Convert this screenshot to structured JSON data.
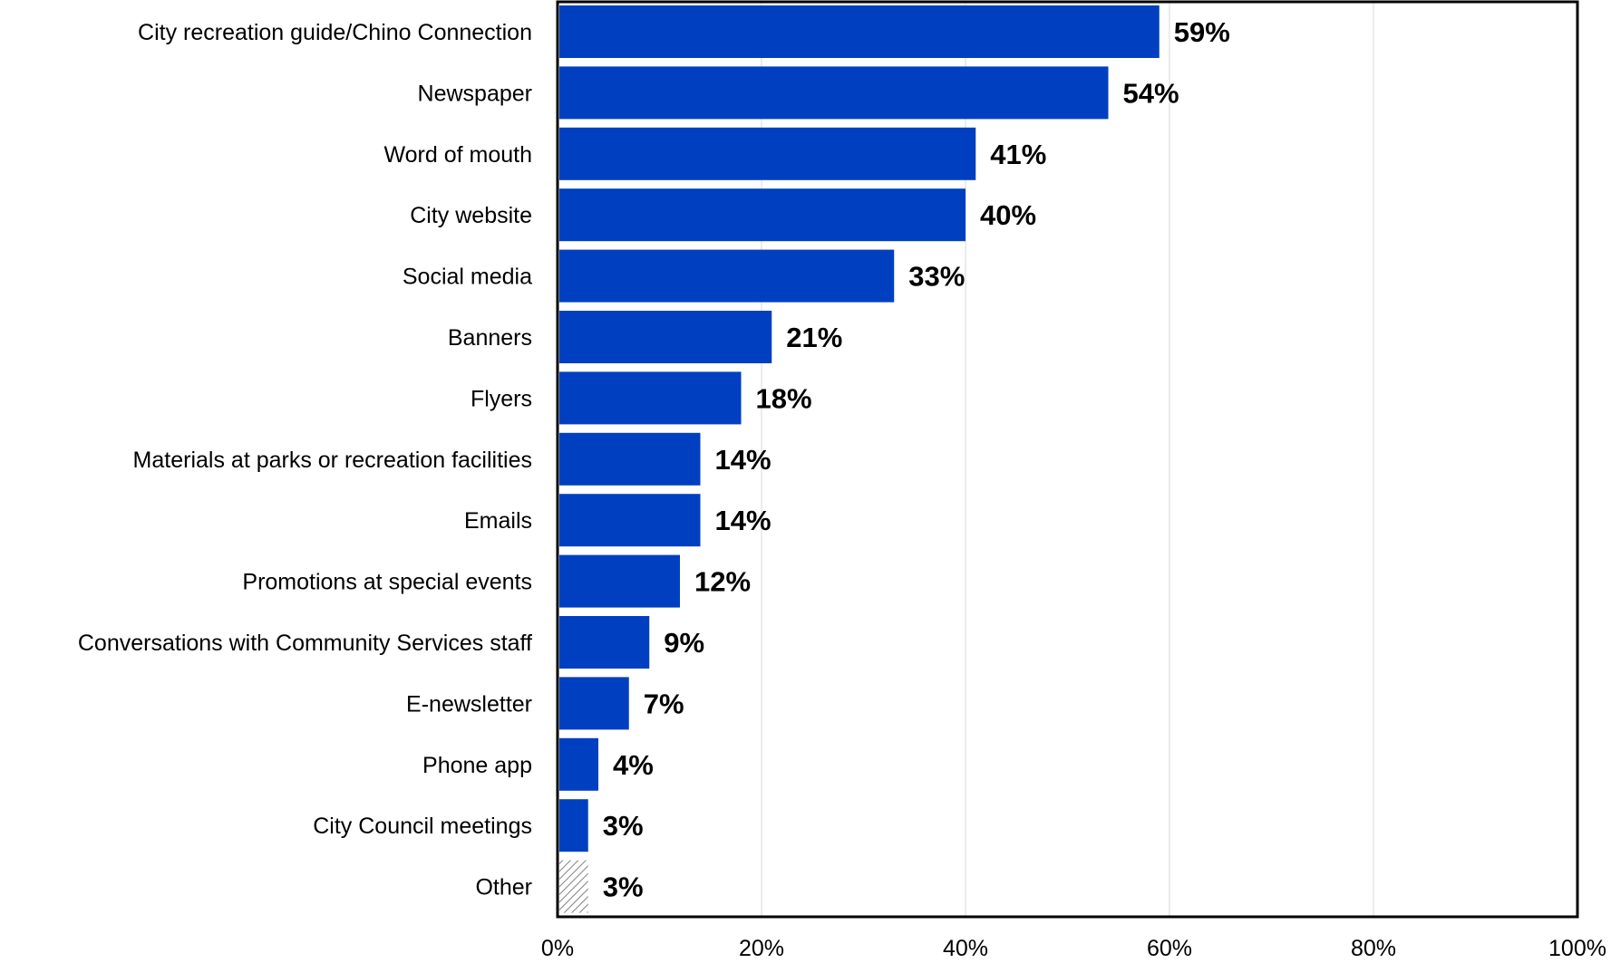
{
  "chart_data": {
    "type": "bar",
    "orientation": "horizontal",
    "categories": [
      "City recreation guide/Chino Connection",
      "Newspaper",
      "Word of mouth",
      "City website",
      "Social media",
      "Banners",
      "Flyers",
      "Materials at parks or recreation facilities",
      "Emails",
      "Promotions at special events",
      "Conversations with Community Services staff",
      "E-newsletter",
      "Phone app",
      "City Council meetings",
      "Other"
    ],
    "values": [
      59,
      54,
      41,
      40,
      33,
      21,
      18,
      14,
      14,
      12,
      9,
      7,
      4,
      3,
      3
    ],
    "data_labels": [
      "59%",
      "54%",
      "41%",
      "40%",
      "33%",
      "21%",
      "18%",
      "14%",
      "14%",
      "12%",
      "9%",
      "7%",
      "4%",
      "3%",
      "3%"
    ],
    "x_ticks": [
      "0%",
      "20%",
      "40%",
      "60%",
      "80%",
      "100%"
    ],
    "xlim": [
      0,
      100
    ],
    "grid": "vertical",
    "title": "",
    "xlabel": "",
    "ylabel": "",
    "colors": {
      "bar": "#0040C0",
      "other_hatch": "#808080",
      "grid": "#d9d9d9",
      "frame": "#000000"
    }
  }
}
